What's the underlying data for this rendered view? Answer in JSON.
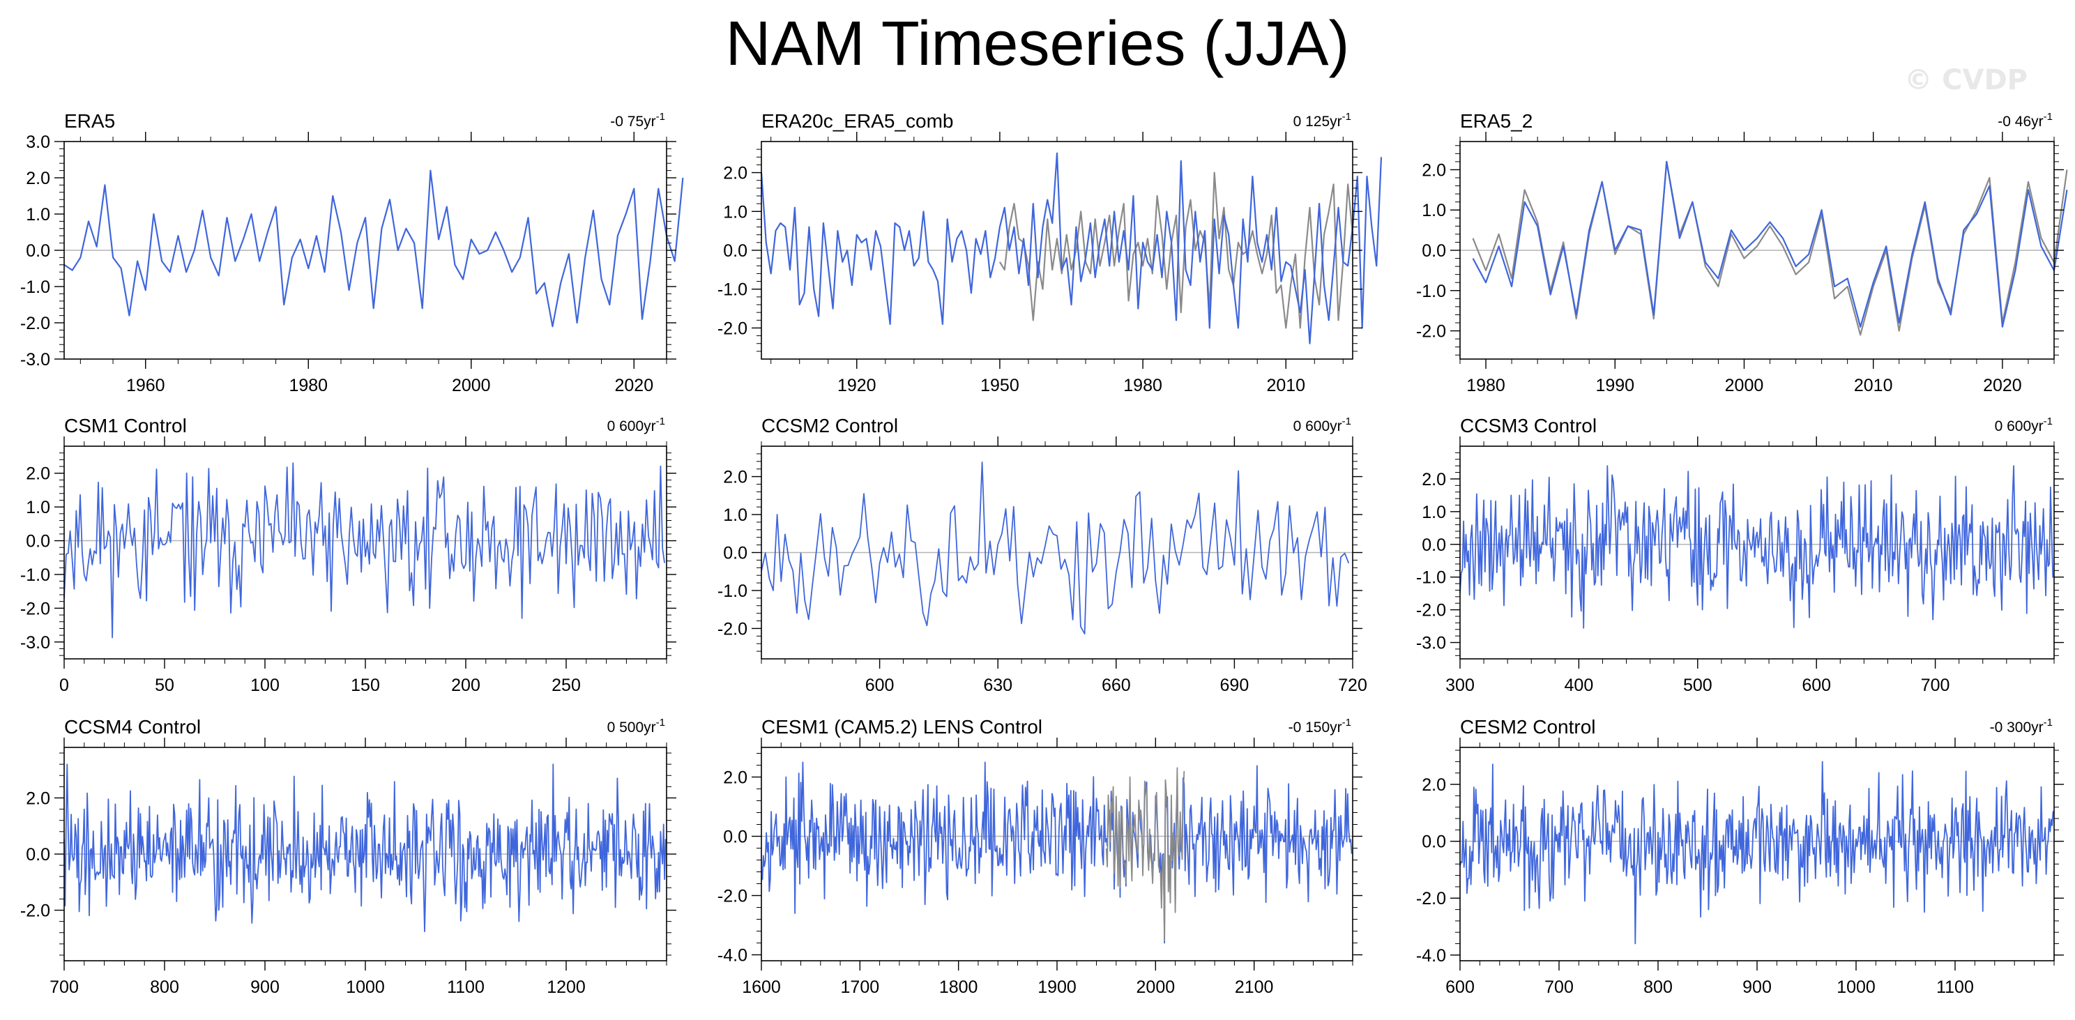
{
  "title": "NAM Timeseries (JJA)",
  "watermark": "© CVDP",
  "colors": {
    "series": "#3f66dc",
    "reference": "#8a8a8a",
    "zero_line": "#b4b4b4",
    "frame": "#000000"
  },
  "chart_data": [
    {
      "type": "line",
      "title": "ERA5",
      "trend": "-0 75yr",
      "trend_exp": "-1",
      "xlim": [
        1950,
        2024
      ],
      "ylim": [
        -3,
        3
      ],
      "xticks": [
        1960,
        1980,
        2000,
        2020
      ],
      "xtick_labels": [
        "1960",
        "1980",
        "2000",
        "2020"
      ],
      "yticks": [
        -3,
        -2,
        -1,
        0,
        1,
        2,
        3
      ],
      "ytick_labels": [
        "-3.0",
        "-2.0",
        "-1.0",
        "0.0",
        "1.0",
        "2.0",
        "3.0"
      ],
      "series": [
        {
          "x_start": 1950,
          "x_step": 1,
          "color": "#3f66dc",
          "values": [
            -0.4,
            -0.55,
            -0.2,
            0.8,
            0.1,
            1.8,
            -0.2,
            -0.5,
            -1.8,
            -0.3,
            -1.1,
            1.0,
            -0.3,
            -0.6,
            0.4,
            -0.6,
            0.0,
            1.1,
            -0.2,
            -0.7,
            0.9,
            -0.3,
            0.3,
            1.0,
            -0.3,
            0.5,
            1.2,
            -1.5,
            -0.2,
            0.3,
            -0.5,
            0.4,
            -0.6,
            1.5,
            0.5,
            -1.1,
            0.2,
            0.9,
            -1.6,
            0.6,
            1.4,
            0.0,
            0.6,
            0.2,
            -1.6,
            2.2,
            0.3,
            1.2,
            -0.4,
            -0.8,
            0.3,
            -0.1,
            0.0,
            0.5,
            0.0,
            -0.6,
            -0.2,
            0.9,
            -1.2,
            -0.9,
            -2.1,
            -0.9,
            -0.1,
            -2.0,
            -0.2,
            1.1,
            -0.8,
            -1.5,
            0.4,
            1.0,
            1.7,
            -1.9,
            -0.3,
            1.7,
            0.4,
            -0.3,
            2.0
          ]
        }
      ]
    },
    {
      "type": "line",
      "title": "ERA20c_ERA5_comb",
      "trend": "0 125yr",
      "trend_exp": "-1",
      "xlim": [
        1900,
        2024
      ],
      "ylim": [
        -2.8,
        2.8
      ],
      "xticks": [
        1920,
        1950,
        1980,
        2010
      ],
      "xtick_labels": [
        "1920",
        "1950",
        "1980",
        "2010"
      ],
      "yticks": [
        -2,
        -1,
        0,
        1,
        2
      ],
      "ytick_labels": [
        "-2.0",
        "-1.0",
        "0.0",
        "1.0",
        "2.0"
      ],
      "series": [
        {
          "x_start": 1950,
          "x_step": 1,
          "color": "#8a8a8a",
          "values": [
            -0.3,
            -0.5,
            0.6,
            1.2,
            0.3,
            0.2,
            -0.4,
            -1.8,
            -0.3,
            -1.0,
            0.8,
            -0.5,
            0.3,
            -0.6,
            0.4,
            -0.5,
            0.0,
            1.0,
            -0.3,
            -0.6,
            0.8,
            -0.4,
            0.2,
            0.9,
            -0.4,
            0.5,
            1.2,
            -1.3,
            -0.1,
            0.2,
            -0.4,
            0.3,
            -0.6,
            1.4,
            0.4,
            -1.0,
            0.2,
            0.9,
            -1.6,
            0.6,
            1.3,
            0.0,
            0.5,
            0.2,
            -1.5,
            2.0,
            0.3,
            1.1,
            -0.5,
            -0.9,
            0.2,
            -0.1,
            0.0,
            0.5,
            -0.1,
            -0.6,
            -0.1,
            0.9,
            -1.1,
            -0.9,
            -2.0,
            -0.9,
            -0.1,
            -2.0,
            -0.2,
            1.1,
            -0.7,
            -1.4,
            0.4,
            1.0,
            1.7,
            -1.8,
            -0.3,
            1.7,
            0.4
          ]
        },
        {
          "x_start": 1900,
          "x_step": 1,
          "color": "#3f66dc",
          "values": [
            2.0,
            0.2,
            -0.6,
            0.5,
            0.7,
            0.6,
            -0.5,
            1.1,
            -1.4,
            -1.1,
            0.6,
            -1.0,
            -1.7,
            0.7,
            -0.4,
            -1.5,
            0.5,
            -0.3,
            0.0,
            -0.9,
            0.4,
            0.2,
            0.3,
            -0.5,
            0.5,
            0.1,
            -0.9,
            -1.9,
            0.7,
            0.6,
            0.0,
            0.5,
            -0.4,
            -0.2,
            1.0,
            -0.3,
            -0.5,
            -0.8,
            -1.9,
            0.8,
            -0.3,
            0.3,
            0.5,
            0.0,
            -1.1,
            0.3,
            -0.1,
            0.5,
            -0.7,
            -0.2,
            0.6,
            1.1,
            0.0,
            0.6,
            -0.6,
            0.3,
            -0.9,
            1.2,
            -0.7,
            0.6,
            1.3,
            0.7,
            2.5,
            -0.5,
            -0.2,
            -1.4,
            0.6,
            -0.8,
            -0.2,
            0.7,
            -0.7,
            0.2,
            0.8,
            -0.4,
            1.0,
            -0.3,
            0.5,
            -0.5,
            1.4,
            -1.5,
            0.2,
            -0.3,
            -0.5,
            0.4,
            -0.7,
            1.0,
            0.2,
            -1.8,
            2.3,
            -0.5,
            -0.9,
            1.0,
            -0.3,
            0.5,
            -2.0,
            0.8,
            -0.6,
            0.9,
            0.4,
            -0.9,
            -2.0,
            0.8,
            -0.3,
            1.9,
            0.2,
            -0.3,
            0.4,
            -0.5,
            1.1,
            -0.8,
            -0.3,
            -0.4,
            -1.0,
            -1.6,
            -0.5,
            -2.4,
            -0.6,
            1.2,
            -0.9,
            -1.8,
            -0.4,
            1.1,
            -0.3,
            -0.4,
            0.6,
            1.9,
            -2.0,
            1.9,
            0.6,
            -0.4,
            2.4
          ]
        }
      ]
    },
    {
      "type": "line",
      "title": "ERA5_2",
      "trend": "-0 46yr",
      "trend_exp": "-1",
      "xlim": [
        1978,
        2024
      ],
      "ylim": [
        -2.7,
        2.7
      ],
      "xticks": [
        1980,
        1990,
        2000,
        2010,
        2020
      ],
      "xtick_labels": [
        "1980",
        "1990",
        "2000",
        "2010",
        "2020"
      ],
      "yticks": [
        -2,
        -1,
        0,
        1,
        2
      ],
      "ytick_labels": [
        "-2.0",
        "-1.0",
        "0.0",
        "1.0",
        "2.0"
      ],
      "series": [
        {
          "x_start": 1979,
          "x_step": 1,
          "color": "#8a8a8a",
          "values": [
            0.3,
            -0.5,
            0.4,
            -0.7,
            1.5,
            0.7,
            -1.0,
            0.2,
            -1.7,
            0.4,
            1.7,
            -0.1,
            0.6,
            0.4,
            -1.7,
            2.2,
            0.4,
            1.2,
            -0.4,
            -0.9,
            0.4,
            -0.2,
            0.1,
            0.6,
            0.1,
            -0.6,
            -0.3,
            0.9,
            -1.2,
            -0.9,
            -2.1,
            -0.9,
            0.0,
            -2.0,
            -0.2,
            1.1,
            -0.8,
            -1.5,
            0.4,
            1.0,
            1.8,
            -1.8,
            -0.3,
            1.7,
            0.3,
            -0.3,
            2.0
          ]
        },
        {
          "x_start": 1979,
          "x_step": 1,
          "color": "#3f66dc",
          "values": [
            -0.2,
            -0.8,
            0.1,
            -0.9,
            1.2,
            0.6,
            -1.1,
            0.1,
            -1.6,
            0.5,
            1.7,
            0.0,
            0.6,
            0.5,
            -1.6,
            2.2,
            0.3,
            1.2,
            -0.3,
            -0.7,
            0.5,
            0.0,
            0.3,
            0.7,
            0.3,
            -0.4,
            -0.1,
            1.0,
            -0.9,
            -0.7,
            -1.9,
            -0.8,
            0.1,
            -1.8,
            -0.1,
            1.2,
            -0.7,
            -1.6,
            0.5,
            0.9,
            1.6,
            -1.9,
            -0.5,
            1.5,
            0.1,
            -0.5,
            1.5
          ]
        }
      ]
    },
    {
      "type": "line",
      "title": "CSM1 Control",
      "trend": "0 600yr",
      "trend_exp": "-1",
      "xlim": [
        0,
        300
      ],
      "ylim": [
        -3.5,
        2.8
      ],
      "generated": {
        "n": 300,
        "x_start": 0,
        "x_step": 1,
        "seed": 11,
        "amplitude": 0.95,
        "clip": [
          -2.9,
          2.3
        ]
      },
      "xticks": [
        0,
        50,
        100,
        150,
        200,
        250
      ],
      "xtick_labels": [
        "0",
        "50",
        "100",
        "150",
        "200",
        "250"
      ],
      "yticks": [
        -3,
        -2,
        -1,
        0,
        1,
        2
      ],
      "ytick_labels": [
        "-3.0",
        "-2.0",
        "-1.0",
        "0.0",
        "1.0",
        "2.0"
      ],
      "series": [
        {
          "color": "#3f66dc"
        }
      ]
    },
    {
      "type": "line",
      "title": "CCSM2 Control",
      "trend": "0 600yr",
      "trend_exp": "-1",
      "xlim": [
        570,
        720
      ],
      "ylim": [
        -2.8,
        2.8
      ],
      "generated": {
        "n": 150,
        "x_start": 570,
        "x_step": 1,
        "seed": 23,
        "amplitude": 0.95,
        "clip": [
          -2.2,
          2.5
        ]
      },
      "xticks": [
        600,
        630,
        660,
        690,
        720
      ],
      "xtick_labels": [
        "600",
        "630",
        "660",
        "690",
        "720"
      ],
      "yticks": [
        -2,
        -1,
        0,
        1,
        2
      ],
      "ytick_labels": [
        "-2.0",
        "-1.0",
        "0.0",
        "1.0",
        "2.0"
      ],
      "series": [
        {
          "color": "#3f66dc"
        }
      ]
    },
    {
      "type": "line",
      "title": "CCSM3 Control",
      "trend": "0 600yr",
      "trend_exp": "-1",
      "xlim": [
        300,
        800
      ],
      "ylim": [
        -3.5,
        3.0
      ],
      "generated": {
        "n": 500,
        "x_start": 300,
        "x_step": 1,
        "seed": 37,
        "amplitude": 0.95,
        "clip": [
          -2.8,
          2.4
        ]
      },
      "xticks": [
        300,
        400,
        500,
        600,
        700
      ],
      "xtick_labels": [
        "300",
        "400",
        "500",
        "600",
        "700"
      ],
      "yticks": [
        -3,
        -2,
        -1,
        0,
        1,
        2
      ],
      "ytick_labels": [
        "-3.0",
        "-2.0",
        "-1.0",
        "0.0",
        "1.0",
        "2.0"
      ],
      "series": [
        {
          "color": "#3f66dc"
        }
      ]
    },
    {
      "type": "line",
      "title": "CCSM4 Control",
      "trend": "0 500yr",
      "trend_exp": "-1",
      "xlim": [
        700,
        1300
      ],
      "ylim": [
        -3.8,
        3.8
      ],
      "generated": {
        "n": 600,
        "x_start": 700,
        "x_step": 1,
        "seed": 41,
        "amplitude": 0.95,
        "clip": [
          -3.4,
          3.2
        ]
      },
      "xticks": [
        700,
        800,
        900,
        1000,
        1100,
        1200
      ],
      "xtick_labels": [
        "700",
        "800",
        "900",
        "1000",
        "1100",
        "1200"
      ],
      "yticks": [
        -2,
        0,
        2
      ],
      "ytick_labels": [
        "-2.0",
        "0.0",
        "2.0"
      ],
      "series": [
        {
          "color": "#3f66dc"
        }
      ]
    },
    {
      "type": "line",
      "title": "CESM1 (CAM5.2) LENS Control",
      "trend": "-0 150yr",
      "trend_exp": "-1",
      "xlim": [
        1600,
        2200
      ],
      "ylim": [
        -4.2,
        3.0
      ],
      "generated": {
        "n": 600,
        "x_start": 1600,
        "x_step": 1,
        "seed": 53,
        "amplitude": 0.95,
        "clip": [
          -3.6,
          2.5
        ],
        "ref_range": [
          1950,
          2030
        ]
      },
      "xticks": [
        1600,
        1700,
        1800,
        1900,
        2000,
        2100
      ],
      "xtick_labels": [
        "1600",
        "1700",
        "1800",
        "1900",
        "2000",
        "2100"
      ],
      "yticks": [
        -4,
        -2,
        0,
        2
      ],
      "ytick_labels": [
        "-4.0",
        "-2.0",
        "0.0",
        "2.0"
      ],
      "series": [
        {
          "color": "#3f66dc"
        },
        {
          "color": "#8a8a8a"
        }
      ]
    },
    {
      "type": "line",
      "title": "CESM2 Control",
      "trend": "-0 300yr",
      "trend_exp": "-1",
      "xlim": [
        600,
        1200
      ],
      "ylim": [
        -4.2,
        3.3
      ],
      "generated": {
        "n": 600,
        "x_start": 600,
        "x_step": 1,
        "seed": 67,
        "amplitude": 0.95,
        "clip": [
          -3.6,
          2.8
        ]
      },
      "xticks": [
        600,
        700,
        800,
        900,
        1000,
        1100
      ],
      "xtick_labels": [
        "600",
        "700",
        "800",
        "900",
        "1000",
        "1100"
      ],
      "yticks": [
        -4,
        -2,
        0,
        2
      ],
      "ytick_labels": [
        "-4.0",
        "-2.0",
        "0.0",
        "2.0"
      ],
      "series": [
        {
          "color": "#3f66dc"
        }
      ]
    }
  ]
}
